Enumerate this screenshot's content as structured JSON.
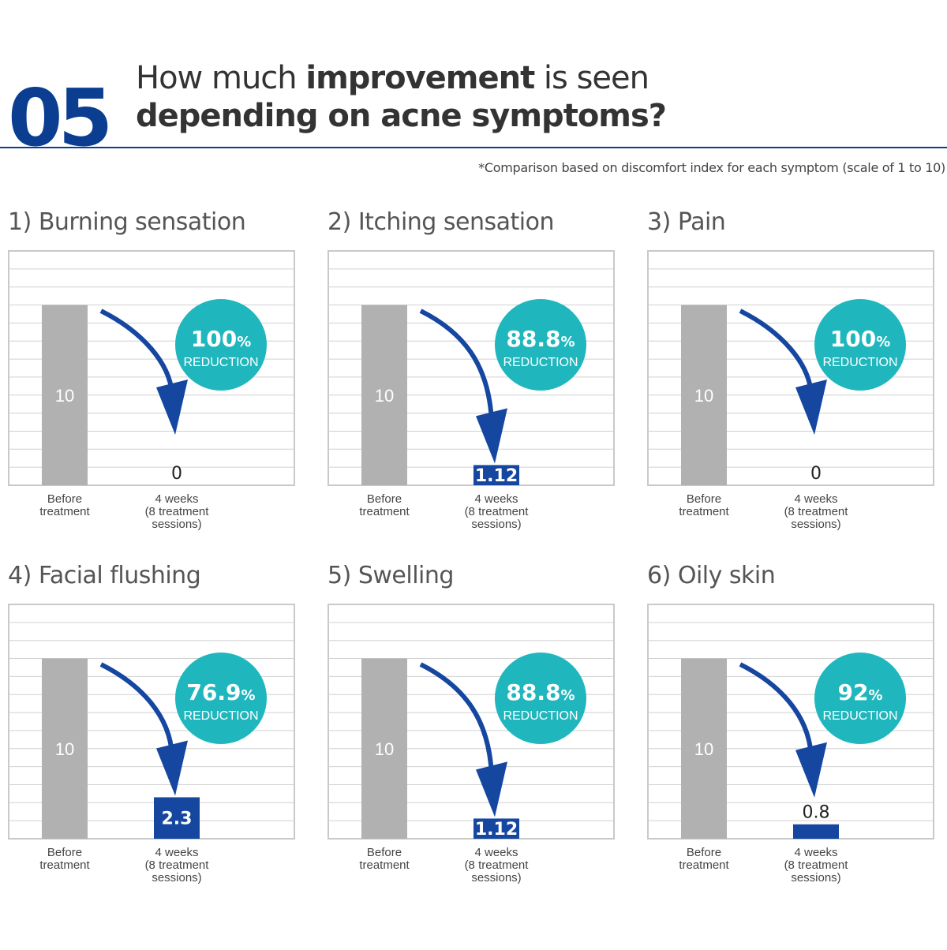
{
  "header": {
    "number": "05",
    "title_line1_pre": "How much ",
    "title_line1_bold": "improvement",
    "title_line1_post": " is seen",
    "title_line2": "depending on acne symptoms?",
    "note": "*Comparison based on discomfort index for each symptom (scale of 1 to 10)"
  },
  "colors": {
    "accent_navy": "#0b3d91",
    "before_bar": "#b1b1b1",
    "after_bar": "#1546a0",
    "badge": "#1fb7bd",
    "gridline": "#d0d0d0"
  },
  "chart_data": [
    {
      "type": "bar",
      "title": "1) Burning sensation",
      "categories": [
        "Before treatment",
        "4 weeks (8 treatment sessions)"
      ],
      "values": [
        10,
        0
      ],
      "value_labels": [
        "10",
        "0"
      ],
      "reduction_value": "100",
      "reduction_unit": "%",
      "reduction_label": "REDUCTION",
      "ylim": [
        0,
        13
      ],
      "grid": true
    },
    {
      "type": "bar",
      "title": "2) Itching sensation",
      "categories": [
        "Before treatment",
        "4 weeks (8 treatment sessions)"
      ],
      "values": [
        10,
        1.12
      ],
      "value_labels": [
        "10",
        "1.12"
      ],
      "reduction_value": "88.8",
      "reduction_unit": "%",
      "reduction_label": "REDUCTION",
      "ylim": [
        0,
        13
      ],
      "grid": true
    },
    {
      "type": "bar",
      "title": "3) Pain",
      "categories": [
        "Before treatment",
        "4 weeks (8 treatment sessions)"
      ],
      "values": [
        10,
        0
      ],
      "value_labels": [
        "10",
        "0"
      ],
      "reduction_value": "100",
      "reduction_unit": "%",
      "reduction_label": "REDUCTION",
      "ylim": [
        0,
        13
      ],
      "grid": true
    },
    {
      "type": "bar",
      "title": "4) Facial flushing",
      "categories": [
        "Before treatment",
        "4 weeks (8 treatment sessions)"
      ],
      "values": [
        10,
        2.3
      ],
      "value_labels": [
        "10",
        "2.3"
      ],
      "reduction_value": "76.9",
      "reduction_unit": "%",
      "reduction_label": "REDUCTION",
      "ylim": [
        0,
        13
      ],
      "grid": true
    },
    {
      "type": "bar",
      "title": "5) Swelling",
      "categories": [
        "Before treatment",
        "4 weeks (8 treatment sessions)"
      ],
      "values": [
        10,
        1.12
      ],
      "value_labels": [
        "10",
        "1.12"
      ],
      "reduction_value": "88.8",
      "reduction_unit": "%",
      "reduction_label": "REDUCTION",
      "ylim": [
        0,
        13
      ],
      "grid": true
    },
    {
      "type": "bar",
      "title": "6) Oily skin",
      "categories": [
        "Before treatment",
        "4 weeks (8 treatment sessions)"
      ],
      "values": [
        10,
        0.8
      ],
      "value_labels": [
        "10",
        "0.8"
      ],
      "reduction_value": "92",
      "reduction_unit": "%",
      "reduction_label": "REDUCTION",
      "ylim": [
        0,
        13
      ],
      "grid": true
    }
  ]
}
